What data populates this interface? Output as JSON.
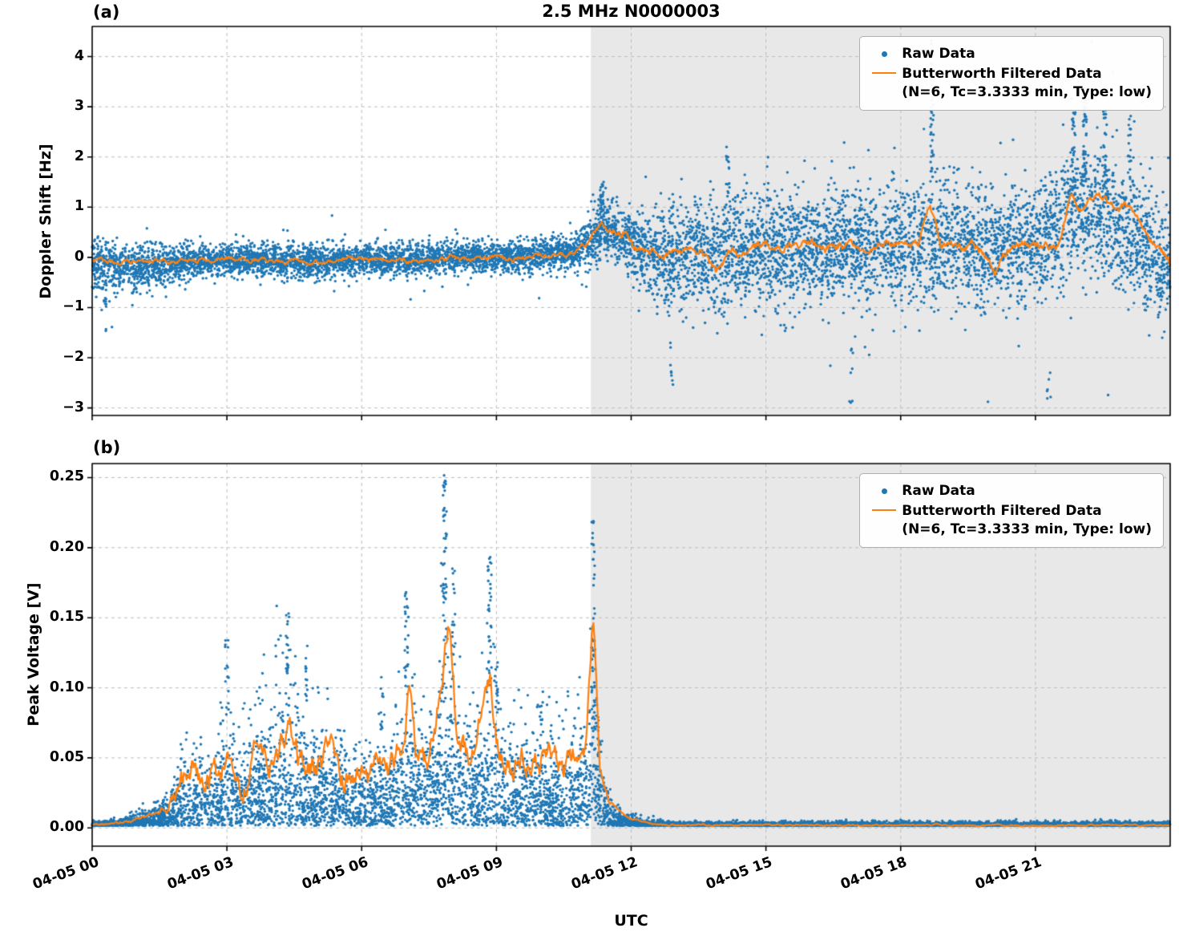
{
  "figure": {
    "xlabel": "UTC",
    "xtick_labels": [
      "04-05 00",
      "04-05 03",
      "04-05 06",
      "04-05 09",
      "04-05 12",
      "04-05 15",
      "04-05 18",
      "04-05 21"
    ],
    "xtick_hours": [
      0,
      3,
      6,
      9,
      12,
      15,
      18,
      21
    ],
    "x_range_hours": [
      0,
      24
    ],
    "shade_start_hour": 11.1,
    "colors": {
      "raw": "#1f77b4",
      "filtered": "#ff7f0e",
      "shade": "#e8e8e8",
      "grid": "#bdbdbd",
      "spine": "#000000"
    }
  },
  "legend": {
    "raw_label": "Raw Data",
    "filtered_label": "Butterworth Filtered Data",
    "filtered_sublabel": "(N=6, Tc=3.3333 min, Type: low)"
  },
  "chart_data": [
    {
      "type": "scatter+line",
      "panel_label": "(a)",
      "title": "2.5 MHz N0000003",
      "ylabel": "Doppler Shift [Hz]",
      "ylim": [
        -3.15,
        4.6
      ],
      "yticks": [
        -3,
        -2,
        -1,
        0,
        1,
        2,
        3,
        4
      ],
      "ytick_labels": [
        "−3",
        "−2",
        "−1",
        "0",
        "1",
        "2",
        "3",
        "4"
      ],
      "model": "gaussian",
      "n_points": 9000,
      "seed": 42,
      "keep": [
        -3.05,
        4.4
      ],
      "raw_envelope": [
        [
          0,
          -0.15,
          0.5
        ],
        [
          0.5,
          -0.2,
          0.45
        ],
        [
          1,
          -0.2,
          0.4
        ],
        [
          1.5,
          -0.15,
          0.35
        ],
        [
          2,
          -0.1,
          0.3
        ],
        [
          3,
          -0.05,
          0.3
        ],
        [
          4,
          -0.05,
          0.28
        ],
        [
          5,
          -0.1,
          0.3
        ],
        [
          6,
          -0.05,
          0.28
        ],
        [
          7,
          -0.05,
          0.3
        ],
        [
          8,
          0,
          0.28
        ],
        [
          9,
          0,
          0.28
        ],
        [
          10,
          0.05,
          0.3
        ],
        [
          10.8,
          0.1,
          0.32
        ],
        [
          11.1,
          0.4,
          0.45
        ],
        [
          11.35,
          0.6,
          0.5
        ],
        [
          11.7,
          0.5,
          0.5
        ],
        [
          12,
          0.3,
          0.55
        ],
        [
          12.3,
          0.1,
          0.7
        ],
        [
          12.8,
          0,
          0.9
        ],
        [
          13.5,
          0.05,
          0.95
        ],
        [
          14,
          0.1,
          1
        ],
        [
          15,
          0.15,
          1
        ],
        [
          16,
          0.2,
          1
        ],
        [
          17,
          0.2,
          1.05
        ],
        [
          18,
          0.25,
          1.1
        ],
        [
          19,
          0.25,
          1.05
        ],
        [
          20,
          0.25,
          1.05
        ],
        [
          21,
          0.3,
          1.1
        ],
        [
          21.6,
          0.8,
          1.15
        ],
        [
          22,
          1,
          1.1
        ],
        [
          22.5,
          0.9,
          1.15
        ],
        [
          23,
          0.5,
          1.15
        ],
        [
          23.5,
          0.1,
          1
        ],
        [
          24,
          -0.3,
          0.95
        ]
      ],
      "filtered_line": {
        "points": [
          [
            0,
            -0.05
          ],
          [
            0.5,
            -0.12
          ],
          [
            1,
            -0.1
          ],
          [
            1.5,
            -0.08
          ],
          [
            2,
            -0.1
          ],
          [
            2.5,
            -0.05
          ],
          [
            3,
            -0.02
          ],
          [
            3.5,
            -0.05
          ],
          [
            4,
            -0.08
          ],
          [
            4.5,
            -0.05
          ],
          [
            5,
            -0.1
          ],
          [
            5.5,
            -0.05
          ],
          [
            6,
            -0.02
          ],
          [
            6.5,
            -0.06
          ],
          [
            7,
            -0.08
          ],
          [
            7.5,
            -0.03
          ],
          [
            8,
            -0.02
          ],
          [
            8.5,
            -0.05
          ],
          [
            9,
            0
          ],
          [
            9.5,
            -0.02
          ],
          [
            10,
            0.03
          ],
          [
            10.5,
            0.08
          ],
          [
            10.8,
            0.1
          ],
          [
            11.05,
            0.25
          ],
          [
            11.2,
            0.55
          ],
          [
            11.35,
            0.75
          ],
          [
            11.5,
            0.65
          ],
          [
            11.7,
            0.55
          ],
          [
            11.9,
            0.45
          ],
          [
            12.1,
            0.2
          ],
          [
            12.4,
            0.1
          ],
          [
            12.7,
            0.05
          ],
          [
            13,
            0.08
          ],
          [
            13.3,
            0.15
          ],
          [
            13.6,
            0.1
          ],
          [
            13.9,
            -0.35
          ],
          [
            14.2,
            0.2
          ],
          [
            14.5,
            0.1
          ],
          [
            15,
            0.3
          ],
          [
            15.3,
            0.15
          ],
          [
            15.6,
            0.25
          ],
          [
            16,
            0.3
          ],
          [
            16.4,
            0.2
          ],
          [
            16.8,
            0.25
          ],
          [
            17.2,
            0.15
          ],
          [
            17.6,
            0.2
          ],
          [
            18,
            0.25
          ],
          [
            18.4,
            0.2
          ],
          [
            18.65,
            0.95
          ],
          [
            18.9,
            0.2
          ],
          [
            19.3,
            0.25
          ],
          [
            19.7,
            0.2
          ],
          [
            20.1,
            -0.3
          ],
          [
            20.4,
            0.2
          ],
          [
            20.8,
            0.25
          ],
          [
            21.2,
            0.2
          ],
          [
            21.5,
            0.3
          ],
          [
            21.8,
            1.15
          ],
          [
            22,
            1.05
          ],
          [
            22.2,
            1.2
          ],
          [
            22.4,
            1.3
          ],
          [
            22.6,
            1.1
          ],
          [
            22.8,
            0.95
          ],
          [
            23,
            1.05
          ],
          [
            23.2,
            0.8
          ],
          [
            23.5,
            0.45
          ],
          [
            23.8,
            0.1
          ],
          [
            24,
            -0.15
          ]
        ],
        "wiggle": [
          [
            0,
            0.08
          ],
          [
            10.8,
            0.08
          ],
          [
            11.2,
            0.14
          ],
          [
            24,
            0.14
          ]
        ]
      },
      "spikes": [
        {
          "hour": 0.3,
          "lo": -1.6,
          "hi": -0.8,
          "count": 10
        },
        {
          "hour": 11.35,
          "lo": 0.9,
          "hi": 1.55,
          "count": 25
        },
        {
          "hour": 12.9,
          "lo": -2.6,
          "hi": -1.6,
          "count": 8
        },
        {
          "hour": 14.15,
          "lo": 1.2,
          "hi": 2.3,
          "count": 15
        },
        {
          "hour": 16.9,
          "lo": -2.9,
          "hi": -1.8,
          "count": 8
        },
        {
          "hour": 18.7,
          "lo": 1.5,
          "hi": 4.35,
          "count": 40
        },
        {
          "hour": 21.3,
          "lo": -2.9,
          "hi": -1.8,
          "count": 6
        },
        {
          "hour": 21.85,
          "lo": 1,
          "hi": 3.2,
          "count": 30
        },
        {
          "hour": 22.1,
          "lo": 1.5,
          "hi": 3.6,
          "count": 45
        },
        {
          "hour": 22.55,
          "lo": 1.2,
          "hi": 3.4,
          "count": 30
        },
        {
          "hour": 23.1,
          "lo": 1,
          "hi": 2.9,
          "count": 20
        }
      ]
    },
    {
      "type": "scatter+line",
      "panel_label": "(b)",
      "title": "",
      "ylabel": "Peak Voltage [V]",
      "ylim": [
        -0.013,
        0.26
      ],
      "yticks": [
        0,
        0.05,
        0.1,
        0.15,
        0.2,
        0.25
      ],
      "ytick_labels": [
        "0.00",
        "0.05",
        "0.10",
        "0.15",
        "0.20",
        "0.25"
      ],
      "model": "halfnormal",
      "n_points": 9000,
      "seed": 7,
      "base": 0.0015,
      "keep": [
        0.0004,
        0.256
      ],
      "raw_envelope": [
        [
          0,
          0.004
        ],
        [
          0.5,
          0.006
        ],
        [
          1,
          0.012
        ],
        [
          1.5,
          0.025
        ],
        [
          2,
          0.07
        ],
        [
          2.3,
          0.09
        ],
        [
          2.6,
          0.07
        ],
        [
          3,
          0.12
        ],
        [
          3.3,
          0.08
        ],
        [
          3.6,
          0.12
        ],
        [
          4,
          0.13
        ],
        [
          4.3,
          0.15
        ],
        [
          4.6,
          0.12
        ],
        [
          5,
          0.1
        ],
        [
          5.4,
          0.09
        ],
        [
          5.8,
          0.08
        ],
        [
          6.2,
          0.09
        ],
        [
          6.6,
          0.08
        ],
        [
          7,
          0.16
        ],
        [
          7.3,
          0.1
        ],
        [
          7.6,
          0.12
        ],
        [
          7.85,
          0.24
        ],
        [
          8.1,
          0.13
        ],
        [
          8.5,
          0.1
        ],
        [
          8.85,
          0.19
        ],
        [
          9.2,
          0.09
        ],
        [
          9.6,
          0.1
        ],
        [
          10,
          0.1
        ],
        [
          10.4,
          0.09
        ],
        [
          10.8,
          0.11
        ],
        [
          11,
          0.12
        ],
        [
          11.15,
          0.22
        ],
        [
          11.4,
          0.05
        ],
        [
          11.7,
          0.02
        ],
        [
          12,
          0.01
        ],
        [
          12.5,
          0.005
        ],
        [
          13,
          0.004
        ],
        [
          24,
          0.004
        ]
      ],
      "filtered_line": {
        "points": [
          [
            0,
            0.002
          ],
          [
            0.5,
            0.003
          ],
          [
            1,
            0.006
          ],
          [
            1.5,
            0.012
          ],
          [
            2,
            0.03
          ],
          [
            2.3,
            0.04
          ],
          [
            2.6,
            0.03
          ],
          [
            3,
            0.05
          ],
          [
            3.3,
            0.035
          ],
          [
            3.6,
            0.05
          ],
          [
            3.9,
            0.045
          ],
          [
            4.2,
            0.06
          ],
          [
            4.4,
            0.078
          ],
          [
            4.6,
            0.05
          ],
          [
            5,
            0.04
          ],
          [
            5.3,
            0.05
          ],
          [
            5.6,
            0.035
          ],
          [
            6,
            0.045
          ],
          [
            6.3,
            0.04
          ],
          [
            6.6,
            0.035
          ],
          [
            6.9,
            0.06
          ],
          [
            7.05,
            0.1
          ],
          [
            7.2,
            0.05
          ],
          [
            7.5,
            0.04
          ],
          [
            7.8,
            0.11
          ],
          [
            7.95,
            0.15
          ],
          [
            8.1,
            0.07
          ],
          [
            8.4,
            0.05
          ],
          [
            8.7,
            0.09
          ],
          [
            8.85,
            0.11
          ],
          [
            9,
            0.06
          ],
          [
            9.3,
            0.04
          ],
          [
            9.6,
            0.05
          ],
          [
            9.9,
            0.045
          ],
          [
            10.2,
            0.05
          ],
          [
            10.5,
            0.04
          ],
          [
            10.8,
            0.05
          ],
          [
            11,
            0.06
          ],
          [
            11.15,
            0.15
          ],
          [
            11.3,
            0.04
          ],
          [
            11.5,
            0.02
          ],
          [
            11.8,
            0.01
          ],
          [
            12,
            0.006
          ],
          [
            12.5,
            0.003
          ],
          [
            13,
            0.002
          ],
          [
            24,
            0.002
          ]
        ],
        "wiggle": [
          [
            0,
            0.001
          ],
          [
            1.5,
            0.002
          ],
          [
            2,
            0.015
          ],
          [
            11.2,
            0.015
          ],
          [
            11.6,
            0.001
          ],
          [
            24,
            0.0008
          ]
        ],
        "min": 0.0008
      },
      "spikes": [
        {
          "hour": 3,
          "lo": 0.08,
          "hi": 0.135,
          "count": 15
        },
        {
          "hour": 4.35,
          "lo": 0.1,
          "hi": 0.155,
          "count": 20
        },
        {
          "hour": 4.75,
          "lo": 0.09,
          "hi": 0.14,
          "count": 12
        },
        {
          "hour": 6.45,
          "lo": 0.07,
          "hi": 0.12,
          "count": 12
        },
        {
          "hour": 7,
          "lo": 0.09,
          "hi": 0.172,
          "count": 25
        },
        {
          "hour": 7.85,
          "lo": 0.13,
          "hi": 0.252,
          "count": 45
        },
        {
          "hour": 8.05,
          "lo": 0.1,
          "hi": 0.185,
          "count": 20
        },
        {
          "hour": 8.85,
          "lo": 0.1,
          "hi": 0.196,
          "count": 30
        },
        {
          "hour": 9,
          "lo": 0.08,
          "hi": 0.13,
          "count": 12
        },
        {
          "hour": 10,
          "lo": 0.07,
          "hi": 0.105,
          "count": 10
        },
        {
          "hour": 11.15,
          "lo": 0.05,
          "hi": 0.222,
          "count": 40
        }
      ]
    }
  ]
}
